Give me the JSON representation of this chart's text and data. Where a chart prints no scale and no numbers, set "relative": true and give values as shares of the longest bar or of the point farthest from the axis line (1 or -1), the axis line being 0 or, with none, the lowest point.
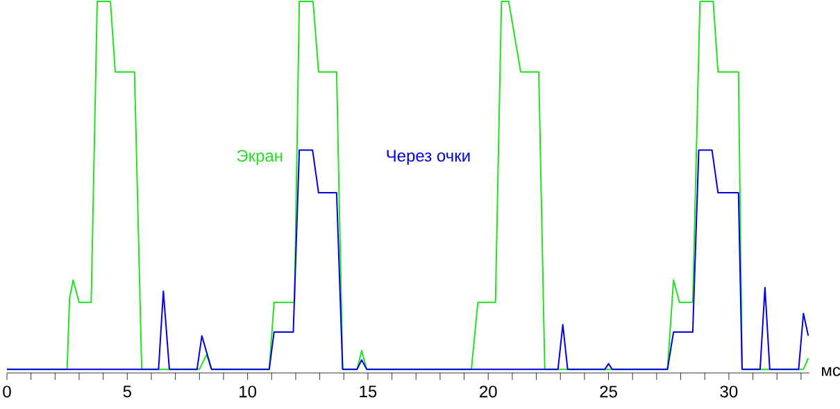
{
  "chart_data": {
    "type": "line",
    "relative": true,
    "xlabel": "мс",
    "xlim": [
      0,
      33.35
    ],
    "xticks": [
      0,
      {
        "value": 1,
        "label": null
      },
      {
        "value": 2,
        "label": null
      },
      {
        "value": 3,
        "label": null
      },
      {
        "value": 4,
        "label": null
      },
      5,
      {
        "value": 6,
        "label": null
      },
      {
        "value": 7,
        "label": null
      },
      {
        "value": 8,
        "label": null
      },
      {
        "value": 9,
        "label": null
      },
      10,
      {
        "value": 11,
        "label": null
      },
      {
        "value": 12,
        "label": null
      },
      {
        "value": 13,
        "label": null
      },
      {
        "value": 14,
        "label": null
      },
      15,
      {
        "value": 16,
        "label": null
      },
      {
        "value": 17,
        "label": null
      },
      {
        "value": 18,
        "label": null
      },
      {
        "value": 19,
        "label": null
      },
      20,
      {
        "value": 21,
        "label": null
      },
      {
        "value": 22,
        "label": null
      },
      {
        "value": 23,
        "label": null
      },
      {
        "value": 24,
        "label": null
      },
      25,
      {
        "value": 26,
        "label": null
      },
      {
        "value": 27,
        "label": null
      },
      {
        "value": 28,
        "label": null
      },
      {
        "value": 29,
        "label": null
      },
      30,
      {
        "value": 31,
        "label": null
      },
      {
        "value": 32,
        "label": null
      },
      {
        "value": 33,
        "label": null
      }
    ],
    "series": [
      {
        "name": "Экран",
        "color": "#22e022",
        "x": [
          0,
          2.5,
          2.6,
          2.75,
          3.0,
          3.5,
          3.75,
          4.3,
          4.5,
          5.3,
          5.6,
          8.0,
          8.3,
          8.5,
          10.9,
          11.1,
          11.95,
          12.15,
          12.72,
          12.95,
          13.7,
          13.95,
          14.55,
          14.74,
          14.95,
          19.3,
          19.57,
          20.3,
          20.55,
          20.85,
          21.35,
          22.1,
          22.35,
          27.45,
          27.7,
          27.95,
          28.5,
          28.8,
          29.35,
          29.55,
          30.4,
          30.55,
          33.1,
          33.3
        ],
        "values": [
          0.01,
          0.01,
          0.2,
          0.25,
          0.19,
          0.19,
          1.0,
          1.0,
          0.81,
          0.81,
          0.01,
          0.01,
          0.05,
          0.01,
          0.01,
          0.19,
          0.19,
          1.0,
          1.0,
          0.81,
          0.81,
          0.01,
          0.01,
          0.06,
          0.01,
          0.01,
          0.19,
          0.19,
          1.0,
          1.0,
          0.81,
          0.81,
          0.01,
          0.01,
          0.25,
          0.19,
          0.19,
          1.0,
          1.0,
          0.81,
          0.81,
          0.01,
          0.01,
          0.04
        ]
      },
      {
        "name": "Через очки",
        "color": "#0000e0",
        "x": [
          0,
          6.3,
          6.5,
          6.75,
          7.9,
          8.1,
          8.5,
          10.9,
          11.1,
          11.9,
          12.15,
          12.7,
          12.95,
          13.7,
          13.95,
          14.55,
          14.74,
          14.95,
          22.9,
          23.1,
          23.3,
          24.85,
          25.0,
          25.15,
          27.45,
          27.7,
          28.5,
          28.75,
          29.3,
          29.55,
          30.4,
          30.55,
          31.3,
          31.5,
          31.7,
          32.9,
          33.1,
          33.3
        ],
        "values": [
          0.01,
          0.01,
          0.22,
          0.01,
          0.01,
          0.1,
          0.01,
          0.01,
          0.11,
          0.11,
          0.6,
          0.6,
          0.485,
          0.485,
          0.01,
          0.01,
          0.035,
          0.01,
          0.01,
          0.13,
          0.01,
          0.01,
          0.025,
          0.01,
          0.01,
          0.11,
          0.11,
          0.6,
          0.6,
          0.485,
          0.485,
          0.01,
          0.01,
          0.23,
          0.01,
          0.01,
          0.16,
          0.1
        ]
      }
    ]
  }
}
